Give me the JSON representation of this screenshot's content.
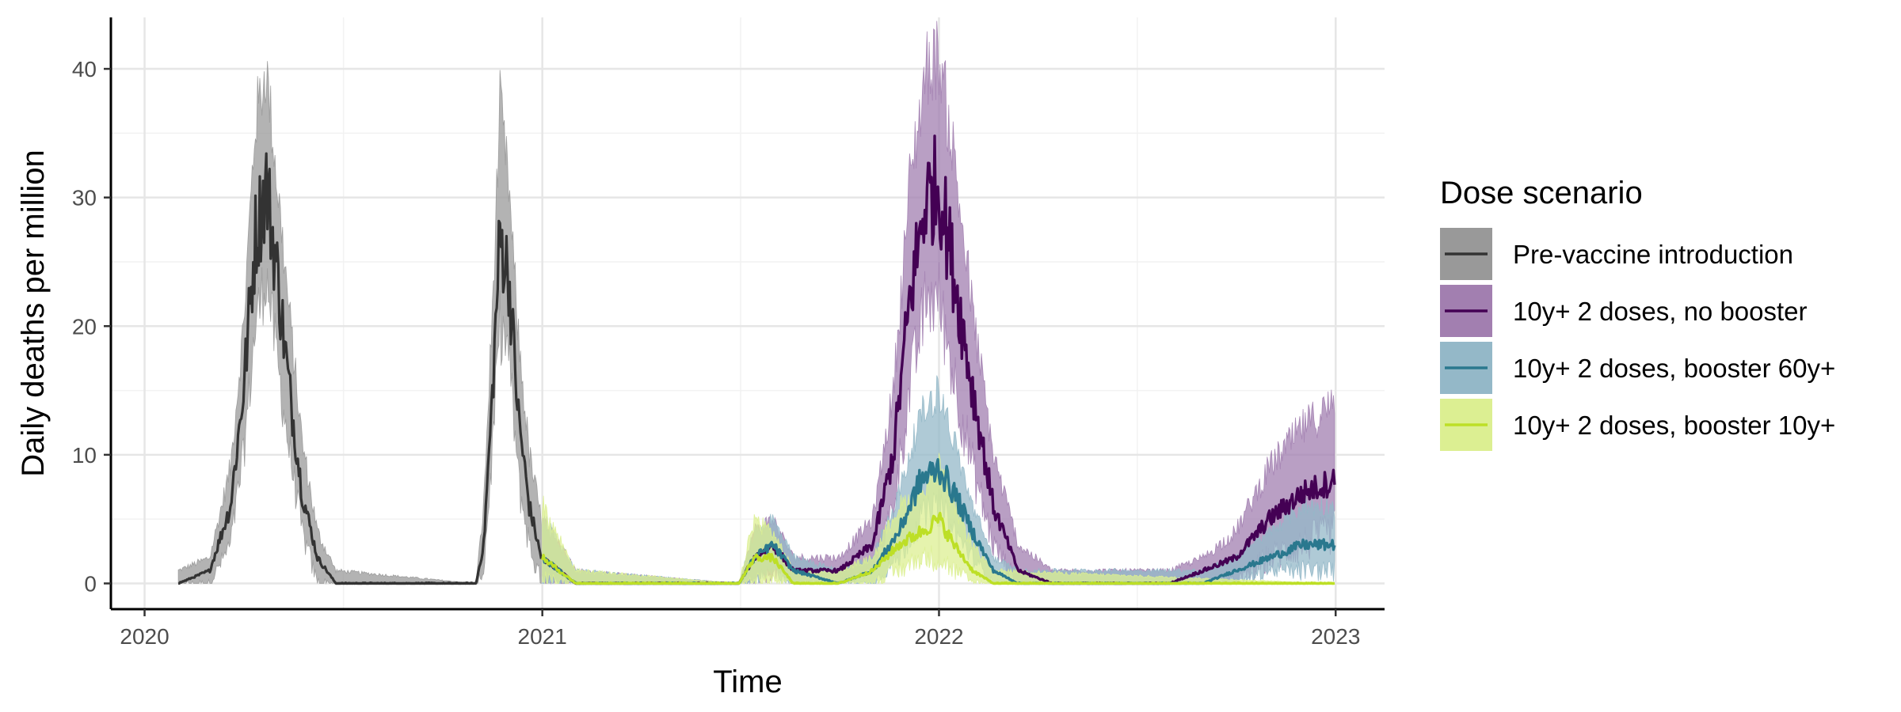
{
  "chart_data": {
    "type": "line",
    "title": "",
    "xlabel": "Time",
    "ylabel": "Daily deaths per million",
    "xlim": [
      "2019-12-01",
      "2023-02-15"
    ],
    "ylim": [
      -2,
      44
    ],
    "x_ticks": [
      "2020-01-01",
      "2021-01-01",
      "2022-01-01",
      "2023-01-01"
    ],
    "x_tick_labels": [
      "2020",
      "2021",
      "2022",
      "2023"
    ],
    "y_ticks": [
      0,
      10,
      20,
      30,
      40
    ],
    "y_tick_labels": [
      "0",
      "10",
      "20",
      "30",
      "40"
    ],
    "grid": true,
    "legend": {
      "title": "Dose scenario",
      "position": "right"
    },
    "series": [
      {
        "name": "Pre-vaccine introduction",
        "line_color": "#333333",
        "band_color": "#999999",
        "points": [
          [
            "2020-02-01",
            0
          ],
          [
            "2020-03-01",
            1
          ],
          [
            "2020-03-20",
            6
          ],
          [
            "2020-04-01",
            15
          ],
          [
            "2020-04-12",
            27
          ],
          [
            "2020-04-22",
            31
          ],
          [
            "2020-05-01",
            25
          ],
          [
            "2020-05-12",
            16
          ],
          [
            "2020-05-25",
            7
          ],
          [
            "2020-06-08",
            2
          ],
          [
            "2020-06-25",
            0
          ],
          [
            "2020-11-01",
            0
          ],
          [
            "2020-11-08",
            3
          ],
          [
            "2020-11-15",
            13
          ],
          [
            "2020-11-23",
            27
          ],
          [
            "2020-12-01",
            24
          ],
          [
            "2020-12-10",
            13
          ],
          [
            "2020-12-20",
            6
          ],
          [
            "2020-12-31",
            2
          ]
        ],
        "band": [
          [
            "2020-02-01",
            0,
            1
          ],
          [
            "2020-03-01",
            0,
            2
          ],
          [
            "2020-03-20",
            3,
            9
          ],
          [
            "2020-04-01",
            10,
            20
          ],
          [
            "2020-04-12",
            20,
            36
          ],
          [
            "2020-04-22",
            24,
            40
          ],
          [
            "2020-05-01",
            18,
            32
          ],
          [
            "2020-05-12",
            11,
            22
          ],
          [
            "2020-05-25",
            4,
            11
          ],
          [
            "2020-06-08",
            0,
            4
          ],
          [
            "2020-06-25",
            0,
            1
          ],
          [
            "2020-11-01",
            0,
            0
          ],
          [
            "2020-11-08",
            1,
            6
          ],
          [
            "2020-11-15",
            9,
            19
          ],
          [
            "2020-11-23",
            20,
            37
          ],
          [
            "2020-12-01",
            18,
            31
          ],
          [
            "2020-12-10",
            8,
            19
          ],
          [
            "2020-12-20",
            3,
            10
          ],
          [
            "2020-12-31",
            0,
            5
          ]
        ]
      },
      {
        "name": "10y+ 2 doses, no booster",
        "line_color": "#440154",
        "band_color": "#a27fb0",
        "points": [
          [
            "2021-01-01",
            2
          ],
          [
            "2021-02-01",
            0
          ],
          [
            "2021-07-01",
            0
          ],
          [
            "2021-07-15",
            2
          ],
          [
            "2021-08-01",
            3
          ],
          [
            "2021-08-20",
            1
          ],
          [
            "2021-10-01",
            1
          ],
          [
            "2021-11-01",
            3
          ],
          [
            "2021-11-20",
            10
          ],
          [
            "2021-12-05",
            22
          ],
          [
            "2021-12-20",
            30
          ],
          [
            "2022-01-01",
            31
          ],
          [
            "2022-01-15",
            24
          ],
          [
            "2022-02-01",
            15
          ],
          [
            "2022-02-20",
            6
          ],
          [
            "2022-03-15",
            1
          ],
          [
            "2022-04-15",
            0
          ],
          [
            "2022-08-01",
            0
          ],
          [
            "2022-09-01",
            1
          ],
          [
            "2022-10-01",
            2
          ],
          [
            "2022-11-01",
            5
          ],
          [
            "2022-12-01",
            7
          ],
          [
            "2022-12-31",
            8
          ]
        ],
        "band": [
          [
            "2021-01-01",
            0,
            5
          ],
          [
            "2021-02-01",
            0,
            1
          ],
          [
            "2021-07-01",
            0,
            0
          ],
          [
            "2021-07-15",
            0,
            4
          ],
          [
            "2021-08-01",
            1,
            5
          ],
          [
            "2021-08-20",
            0,
            2
          ],
          [
            "2021-10-01",
            0,
            2
          ],
          [
            "2021-11-01",
            1,
            5
          ],
          [
            "2021-11-20",
            6,
            15
          ],
          [
            "2021-12-05",
            15,
            31
          ],
          [
            "2021-12-20",
            22,
            40
          ],
          [
            "2022-01-01",
            22,
            41
          ],
          [
            "2022-01-15",
            16,
            33
          ],
          [
            "2022-02-01",
            9,
            21
          ],
          [
            "2022-02-20",
            3,
            10
          ],
          [
            "2022-03-15",
            0,
            3
          ],
          [
            "2022-04-15",
            0,
            1
          ],
          [
            "2022-08-01",
            0,
            1
          ],
          [
            "2022-09-01",
            0,
            2
          ],
          [
            "2022-10-01",
            0,
            4
          ],
          [
            "2022-11-01",
            2,
            9
          ],
          [
            "2022-12-01",
            3,
            12
          ],
          [
            "2022-12-31",
            4,
            14
          ]
        ]
      },
      {
        "name": "10y+ 2 doses, booster 60y+",
        "line_color": "#2a788e",
        "band_color": "#94b8c8",
        "points": [
          [
            "2021-01-01",
            2
          ],
          [
            "2021-02-01",
            0
          ],
          [
            "2021-07-01",
            0
          ],
          [
            "2021-07-15",
            2
          ],
          [
            "2021-08-01",
            3
          ],
          [
            "2021-08-20",
            1
          ],
          [
            "2021-10-01",
            0
          ],
          [
            "2021-11-01",
            1
          ],
          [
            "2021-11-25",
            4
          ],
          [
            "2021-12-15",
            8
          ],
          [
            "2022-01-01",
            9
          ],
          [
            "2022-01-15",
            7
          ],
          [
            "2022-02-01",
            4
          ],
          [
            "2022-02-20",
            1
          ],
          [
            "2022-03-15",
            0
          ],
          [
            "2022-09-01",
            0
          ],
          [
            "2022-10-01",
            1
          ],
          [
            "2022-11-01",
            2
          ],
          [
            "2022-12-01",
            3
          ],
          [
            "2022-12-31",
            3
          ]
        ],
        "band": [
          [
            "2021-01-01",
            0,
            5
          ],
          [
            "2021-02-01",
            0,
            1
          ],
          [
            "2021-07-01",
            0,
            0
          ],
          [
            "2021-07-15",
            0,
            4
          ],
          [
            "2021-08-01",
            1,
            5
          ],
          [
            "2021-08-20",
            0,
            2
          ],
          [
            "2021-10-01",
            0,
            1
          ],
          [
            "2021-11-01",
            0,
            2
          ],
          [
            "2021-11-25",
            2,
            7
          ],
          [
            "2021-12-15",
            5,
            13
          ],
          [
            "2022-01-01",
            6,
            15
          ],
          [
            "2022-01-15",
            4,
            11
          ],
          [
            "2022-02-01",
            2,
            6
          ],
          [
            "2022-02-20",
            0,
            2
          ],
          [
            "2022-03-15",
            0,
            1
          ],
          [
            "2022-09-01",
            0,
            1
          ],
          [
            "2022-10-01",
            0,
            2
          ],
          [
            "2022-11-01",
            1,
            4
          ],
          [
            "2022-12-01",
            1,
            6
          ],
          [
            "2022-12-31",
            1,
            6
          ]
        ]
      },
      {
        "name": "10y+ 2 doses, booster 10y+",
        "line_color": "#bddf26",
        "band_color": "#dcef92",
        "points": [
          [
            "2021-01-01",
            2
          ],
          [
            "2021-02-01",
            0
          ],
          [
            "2021-07-01",
            0
          ],
          [
            "2021-07-15",
            2
          ],
          [
            "2021-08-01",
            2
          ],
          [
            "2021-08-20",
            0
          ],
          [
            "2021-10-01",
            0
          ],
          [
            "2021-11-01",
            1
          ],
          [
            "2021-11-25",
            3
          ],
          [
            "2021-12-15",
            4
          ],
          [
            "2022-01-01",
            5
          ],
          [
            "2022-01-15",
            3
          ],
          [
            "2022-02-01",
            1
          ],
          [
            "2022-02-20",
            0
          ],
          [
            "2022-12-31",
            0
          ]
        ],
        "band": [
          [
            "2021-01-01",
            0,
            6
          ],
          [
            "2021-02-01",
            0,
            1
          ],
          [
            "2021-07-01",
            0,
            0
          ],
          [
            "2021-07-15",
            0,
            5
          ],
          [
            "2021-08-01",
            0,
            4
          ],
          [
            "2021-08-20",
            0,
            1
          ],
          [
            "2021-10-01",
            0,
            1
          ],
          [
            "2021-11-01",
            0,
            2
          ],
          [
            "2021-11-25",
            1,
            6
          ],
          [
            "2021-12-15",
            2,
            7
          ],
          [
            "2022-01-01",
            2,
            9
          ],
          [
            "2022-01-15",
            1,
            6
          ],
          [
            "2022-02-01",
            0,
            3
          ],
          [
            "2022-02-20",
            0,
            1
          ],
          [
            "2022-12-31",
            0,
            0
          ]
        ]
      }
    ]
  }
}
